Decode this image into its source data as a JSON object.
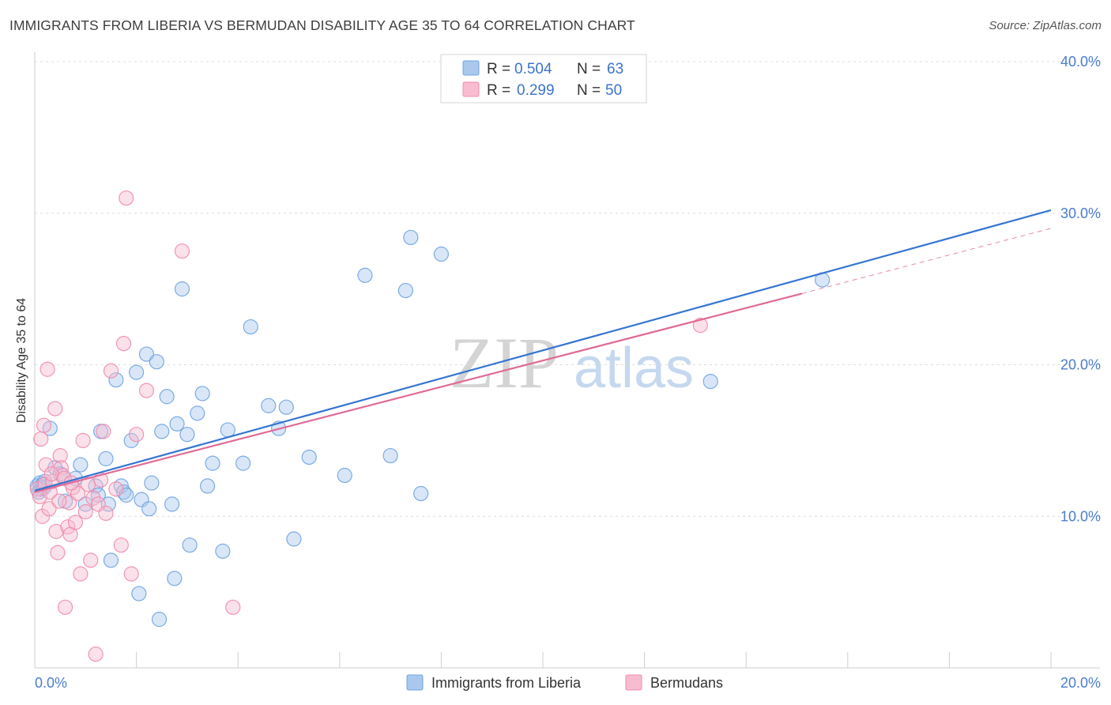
{
  "title": "IMMIGRANTS FROM LIBERIA VS BERMUDAN DISABILITY AGE 35 TO 64 CORRELATION CHART",
  "source": "Source: ZipAtlas.com",
  "watermark": {
    "zip": "ZIP",
    "atlas": "atlas"
  },
  "chart_data": {
    "type": "scatter",
    "title": "IMMIGRANTS FROM LIBERIA VS BERMUDAN DISABILITY AGE 35 TO 64 CORRELATION CHART",
    "xlabel": "",
    "ylabel": "Disability Age 35 to 64",
    "xlim": [
      0,
      20
    ],
    "ylim": [
      0,
      40
    ],
    "x_ticks": [
      0,
      20
    ],
    "x_tick_labels": [
      "0.0%",
      "20.0%"
    ],
    "y_ticks": [
      10,
      20,
      30,
      40
    ],
    "y_tick_labels": [
      "10.0%",
      "20.0%",
      "30.0%",
      "40.0%"
    ],
    "grid": true,
    "legend": {
      "position": "top-center",
      "rows": [
        {
          "r_label": "R =",
          "r_value": "0.504",
          "n_label": "N =",
          "n_value": "63"
        },
        {
          "r_label": "R =",
          "r_value": "0.299",
          "n_label": "N =",
          "n_value": "50"
        }
      ]
    },
    "series": [
      {
        "name": "Immigrants from Liberia",
        "color": "#6fa3e0",
        "fill": "#aac8ee",
        "line_color": "#3575d1",
        "trend": {
          "x": [
            0.0,
            20.0
          ],
          "y": [
            11.7,
            30.2
          ]
        },
        "points": [
          [
            0.05,
            12.0
          ],
          [
            0.08,
            11.6
          ],
          [
            0.1,
            12.2
          ],
          [
            0.12,
            11.8
          ],
          [
            0.15,
            12.1
          ],
          [
            0.18,
            11.9
          ],
          [
            0.2,
            12.3
          ],
          [
            0.3,
            15.8
          ],
          [
            0.4,
            13.2
          ],
          [
            0.5,
            12.8
          ],
          [
            0.6,
            11.0
          ],
          [
            0.8,
            12.5
          ],
          [
            1.0,
            10.8
          ],
          [
            0.9,
            13.4
          ],
          [
            1.2,
            12.0
          ],
          [
            1.25,
            11.4
          ],
          [
            1.3,
            15.6
          ],
          [
            1.4,
            13.8
          ],
          [
            1.45,
            10.8
          ],
          [
            1.5,
            7.1
          ],
          [
            1.6,
            19.0
          ],
          [
            1.7,
            12.0
          ],
          [
            1.75,
            11.6
          ],
          [
            1.8,
            11.4
          ],
          [
            1.9,
            15.0
          ],
          [
            2.0,
            19.5
          ],
          [
            2.05,
            4.9
          ],
          [
            2.1,
            11.1
          ],
          [
            2.2,
            20.7
          ],
          [
            2.25,
            10.5
          ],
          [
            2.3,
            12.2
          ],
          [
            2.4,
            20.2
          ],
          [
            2.45,
            3.2
          ],
          [
            2.5,
            15.6
          ],
          [
            2.6,
            17.9
          ],
          [
            2.7,
            10.8
          ],
          [
            2.75,
            5.9
          ],
          [
            2.8,
            16.1
          ],
          [
            2.9,
            25.0
          ],
          [
            3.0,
            15.4
          ],
          [
            3.05,
            8.1
          ],
          [
            3.2,
            16.8
          ],
          [
            3.3,
            18.1
          ],
          [
            3.4,
            12.0
          ],
          [
            3.5,
            13.5
          ],
          [
            3.7,
            7.7
          ],
          [
            3.8,
            15.7
          ],
          [
            4.1,
            13.5
          ],
          [
            4.25,
            22.5
          ],
          [
            4.6,
            17.3
          ],
          [
            4.8,
            15.8
          ],
          [
            4.95,
            17.2
          ],
          [
            5.1,
            8.5
          ],
          [
            5.4,
            13.9
          ],
          [
            6.1,
            12.7
          ],
          [
            6.5,
            25.9
          ],
          [
            7.0,
            14.0
          ],
          [
            7.3,
            24.9
          ],
          [
            7.4,
            28.4
          ],
          [
            7.6,
            11.5
          ],
          [
            8.0,
            27.3
          ],
          [
            13.3,
            18.9
          ],
          [
            15.5,
            25.6
          ]
        ]
      },
      {
        "name": "Bermudans",
        "color": "#f08bad",
        "fill": "#f7bccf",
        "line_color": "#e06b95",
        "trend": {
          "x": [
            0.0,
            15.1
          ],
          "y": [
            11.6,
            24.7
          ]
        },
        "trend_extension": {
          "x": [
            15.1,
            20.0
          ],
          "y": [
            24.7,
            29.0
          ]
        },
        "points": [
          [
            0.05,
            11.8
          ],
          [
            0.1,
            11.3
          ],
          [
            0.12,
            15.1
          ],
          [
            0.15,
            10.0
          ],
          [
            0.18,
            16.0
          ],
          [
            0.2,
            12.1
          ],
          [
            0.22,
            13.4
          ],
          [
            0.25,
            19.7
          ],
          [
            0.3,
            11.6
          ],
          [
            0.35,
            12.3
          ],
          [
            0.4,
            17.1
          ],
          [
            0.42,
            9.0
          ],
          [
            0.45,
            7.6
          ],
          [
            0.5,
            14.0
          ],
          [
            0.52,
            13.2
          ],
          [
            0.55,
            12.7
          ],
          [
            0.6,
            4.0
          ],
          [
            0.65,
            9.3
          ],
          [
            0.68,
            10.9
          ],
          [
            0.7,
            8.8
          ],
          [
            0.75,
            11.9
          ],
          [
            0.8,
            9.6
          ],
          [
            0.85,
            11.5
          ],
          [
            0.9,
            6.2
          ],
          [
            0.95,
            15.0
          ],
          [
            1.0,
            10.3
          ],
          [
            1.05,
            12.1
          ],
          [
            1.1,
            7.1
          ],
          [
            1.15,
            11.2
          ],
          [
            1.2,
            0.9
          ],
          [
            1.25,
            10.8
          ],
          [
            1.3,
            12.4
          ],
          [
            1.35,
            15.6
          ],
          [
            1.4,
            10.2
          ],
          [
            1.5,
            19.6
          ],
          [
            1.6,
            11.8
          ],
          [
            1.7,
            8.1
          ],
          [
            1.75,
            21.4
          ],
          [
            1.8,
            31.0
          ],
          [
            1.9,
            6.2
          ],
          [
            2.0,
            15.4
          ],
          [
            2.2,
            18.3
          ],
          [
            2.9,
            27.5
          ],
          [
            3.9,
            4.0
          ],
          [
            0.28,
            10.5
          ],
          [
            0.33,
            12.8
          ],
          [
            0.48,
            11.0
          ],
          [
            0.58,
            12.5
          ],
          [
            0.72,
            12.2
          ],
          [
            13.1,
            22.6
          ]
        ]
      }
    ]
  }
}
